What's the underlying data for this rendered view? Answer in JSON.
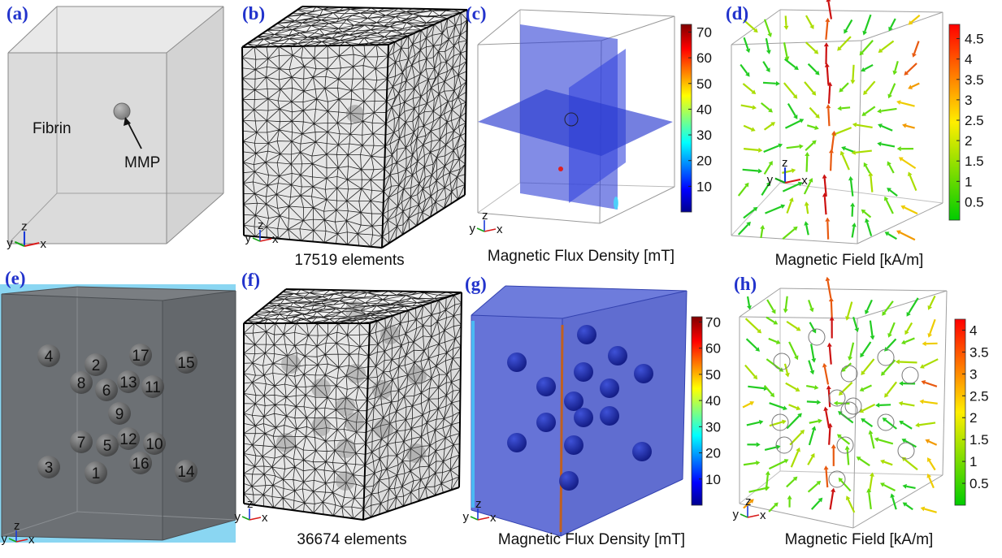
{
  "panels": [
    {
      "label": "(a)",
      "annotations": [
        "Fibrin",
        "MMP"
      ],
      "triad": [
        "y",
        "z",
        "x"
      ]
    },
    {
      "label": "(b)",
      "caption": "17519 elements",
      "triad": [
        "y",
        "z",
        "x"
      ]
    },
    {
      "label": "(c)",
      "caption": "Magnetic Flux Density [mT]",
      "triad": [
        "y",
        "z",
        "x"
      ],
      "colorbar": {
        "lim": [
          0,
          73
        ],
        "ticks": [
          10,
          20,
          30,
          40,
          50,
          60,
          70
        ]
      }
    },
    {
      "label": "(d)",
      "caption": "Magnetic Field [kA/m]",
      "triad": [
        "y",
        "z",
        "x"
      ],
      "colorbar": {
        "lim": [
          0.05,
          4.85
        ],
        "ticks": [
          0.5,
          1,
          1.5,
          2,
          2.5,
          3,
          3.5,
          4,
          4.5
        ]
      }
    },
    {
      "label": "(e)",
      "triad": [
        "y",
        "z",
        "x"
      ],
      "spheres": [
        {
          "text": "1",
          "color": "#111111"
        },
        {
          "text": "2",
          "color": "#111111"
        },
        {
          "text": "3",
          "color": "#111111"
        },
        {
          "text": "4",
          "color": "#111111"
        },
        {
          "text": "5",
          "color": "#ffffff"
        },
        {
          "text": "6",
          "color": "#ffffff"
        },
        {
          "text": "7",
          "color": "#ffffff"
        },
        {
          "text": "8",
          "color": "#ffffff"
        },
        {
          "text": "9",
          "color": "#ffff00"
        },
        {
          "text": "10",
          "color": "#33dd33"
        },
        {
          "text": "11",
          "color": "#33dd33"
        },
        {
          "text": "12",
          "color": "#33dd33"
        },
        {
          "text": "13",
          "color": "#33dd33"
        },
        {
          "text": "14",
          "color": "#ff2020"
        },
        {
          "text": "15",
          "color": "#ff2020"
        },
        {
          "text": "16",
          "color": "#ff2020"
        },
        {
          "text": "17",
          "color": "#ff2020"
        }
      ]
    },
    {
      "label": "(f)",
      "caption": "36674 elements",
      "triad": [
        "y",
        "z",
        "x"
      ]
    },
    {
      "label": "(g)",
      "caption": "Magnetic Flux Density [mT]",
      "triad": [
        "y",
        "z",
        "x"
      ],
      "colorbar": {
        "lim": [
          0,
          72
        ],
        "ticks": [
          10,
          20,
          30,
          40,
          50,
          60,
          70
        ]
      }
    },
    {
      "label": "(h)",
      "caption": "Magnetic Field [kA/m]",
      "triad": [
        "y",
        "z",
        "x"
      ],
      "colorbar": {
        "lim": [
          0,
          4.25
        ],
        "ticks": [
          0.5,
          1,
          1.5,
          2,
          2.5,
          3,
          3.5,
          4
        ]
      }
    }
  ]
}
